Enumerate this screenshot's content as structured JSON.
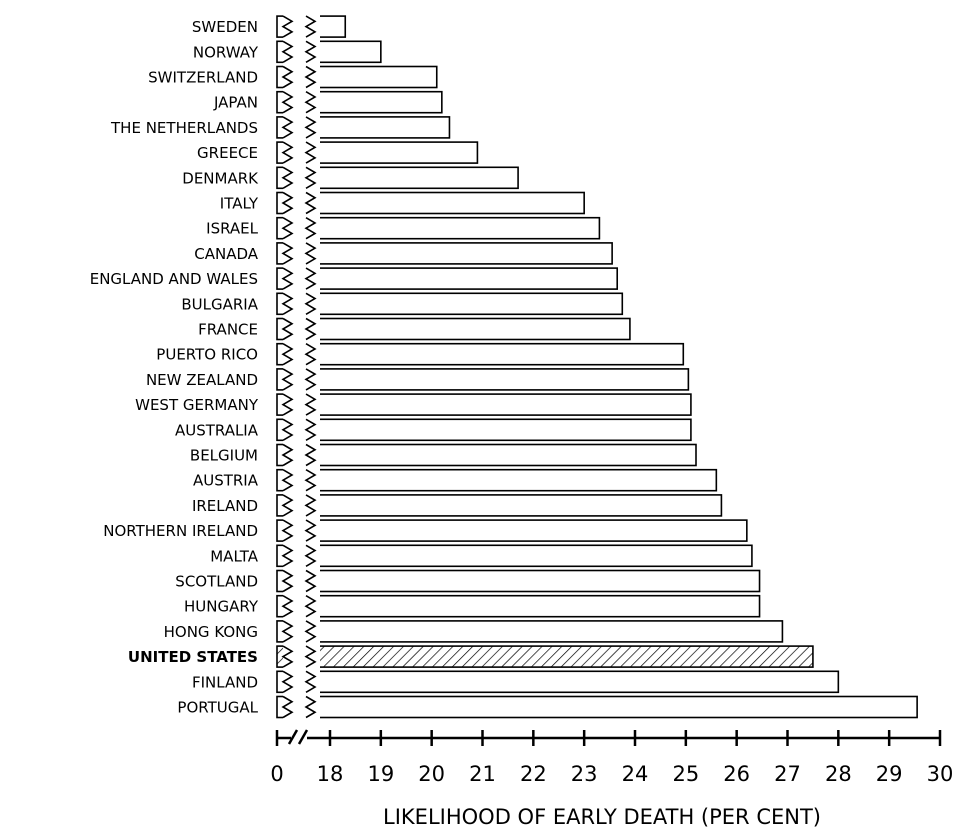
{
  "chart_data": {
    "type": "bar",
    "orientation": "horizontal",
    "categories": [
      "SWEDEN",
      "NORWAY",
      "SWITZERLAND",
      "JAPAN",
      "THE NETHERLANDS",
      "GREECE",
      "DENMARK",
      "ITALY",
      "ISRAEL",
      "CANADA",
      "ENGLAND AND WALES",
      "BULGARIA",
      "FRANCE",
      "PUERTO RICO",
      "NEW ZEALAND",
      "WEST GERMANY",
      "AUSTRALIA",
      "BELGIUM",
      "AUSTRIA",
      "IRELAND",
      "NORTHERN IRELAND",
      "MALTA",
      "SCOTLAND",
      "HUNGARY",
      "HONG KONG",
      "UNITED STATES",
      "FINLAND",
      "PORTUGAL"
    ],
    "values": [
      18.3,
      19.0,
      20.1,
      20.2,
      20.35,
      20.9,
      21.7,
      23.0,
      23.3,
      23.55,
      23.65,
      23.75,
      23.9,
      24.95,
      25.05,
      25.1,
      25.1,
      25.2,
      25.6,
      25.7,
      26.2,
      26.3,
      26.45,
      26.45,
      26.9,
      27.5,
      28.0,
      29.55
    ],
    "color": "#ffffff",
    "highlight": "UNITED STATES",
    "xlabel": "LIKELIHOOD OF EARLY DEATH (PER CENT)",
    "xlim": [
      0,
      30
    ],
    "xticks": [
      0,
      18,
      19,
      20,
      21,
      22,
      23,
      24,
      25,
      26,
      27,
      28,
      29,
      30
    ],
    "axis_break": true,
    "grid": false
  }
}
